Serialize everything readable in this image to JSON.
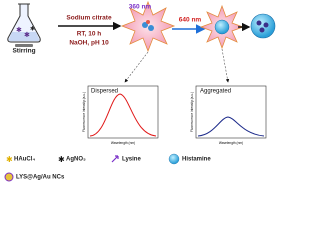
{
  "synthesis": {
    "stirring": "Stirring",
    "reagent": "Sodium citrate",
    "conditions": [
      "RT, 10 h",
      "NaOH, pH 10"
    ],
    "excitation": "360 nm",
    "emission": "640 nm"
  },
  "plots": [
    {
      "label": "Dispersed",
      "x_axis": "Wavelength (nm)",
      "y_axis": "Fluorescence intensity (a.u.)"
    },
    {
      "label": "Aggregated",
      "x_axis": "Wavelength (nm)",
      "y_axis": "Fluorescence intensity (a.u.)"
    }
  ],
  "legend": [
    "HAuCl₄",
    "AgNO₃",
    "Lysine",
    "Histamine",
    "LYS@Ag/Au NCs"
  ]
}
